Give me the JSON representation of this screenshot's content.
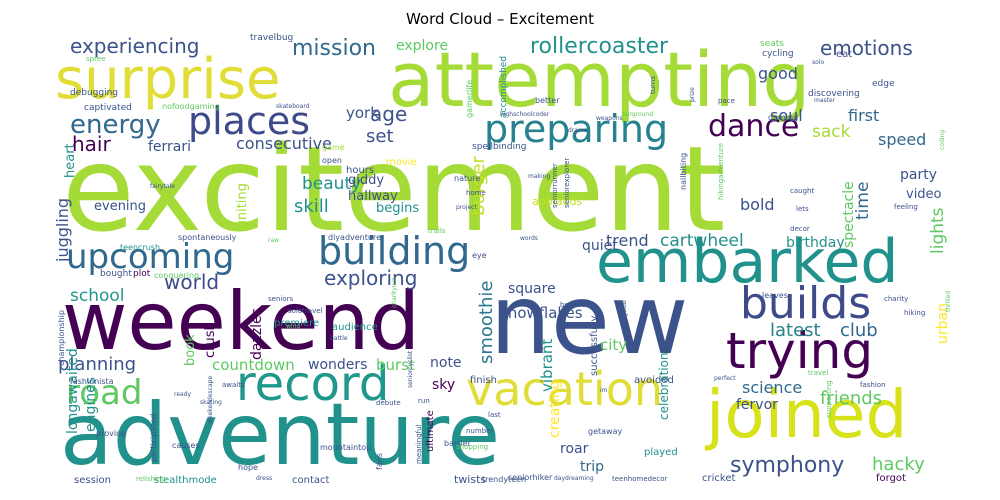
{
  "chart_data": {
    "type": "wordcloud",
    "title": "Word Cloud – Excitement",
    "palette": [
      "#440154",
      "#3b528b",
      "#21918c",
      "#5ec962",
      "#a5db36",
      "#fde725"
    ],
    "words": [
      {
        "text": "excitement",
        "weight": 100,
        "color": "#a5db36"
      },
      {
        "text": "new",
        "weight": 62,
        "color": "#3b528b"
      },
      {
        "text": "weekend",
        "weight": 58,
        "color": "#440154"
      },
      {
        "text": "attempting",
        "weight": 55,
        "color": "#a5db36"
      },
      {
        "text": "adventure",
        "weight": 55,
        "color": "#21918c"
      },
      {
        "text": "surprise",
        "weight": 42,
        "color": "#e1dd37"
      },
      {
        "text": "embarked",
        "weight": 40,
        "color": "#21918c"
      },
      {
        "text": "joined",
        "weight": 40,
        "color": "#d8e219"
      },
      {
        "text": "record",
        "weight": 33,
        "color": "#1f988b"
      },
      {
        "text": "trying",
        "weight": 33,
        "color": "#440154"
      },
      {
        "text": "vacation",
        "weight": 32,
        "color": "#e1dd37"
      },
      {
        "text": "builds",
        "weight": 28,
        "color": "#3e4a89"
      },
      {
        "text": "upcoming",
        "weight": 26,
        "color": "#31688e"
      },
      {
        "text": "building",
        "weight": 26,
        "color": "#31688e"
      },
      {
        "text": "places",
        "weight": 25,
        "color": "#3e4a89"
      },
      {
        "text": "preparing",
        "weight": 24,
        "color": "#26828e"
      },
      {
        "text": "road",
        "weight": 24,
        "color": "#5ec962"
      },
      {
        "text": "symphony",
        "weight": 16,
        "color": "#3b528b"
      },
      {
        "text": "dance",
        "weight": 17,
        "color": "#440154"
      },
      {
        "text": "energy",
        "weight": 16,
        "color": "#31688e"
      },
      {
        "text": "rollercoaster",
        "weight": 15,
        "color": "#21918c"
      },
      {
        "text": "experiencing",
        "weight": 13,
        "color": "#3b528b"
      },
      {
        "text": "mission",
        "weight": 14,
        "color": "#31688e"
      },
      {
        "text": "emotions",
        "weight": 13,
        "color": "#3b528b"
      },
      {
        "text": "exploring",
        "weight": 13,
        "color": "#3b528b"
      },
      {
        "text": "world",
        "weight": 13,
        "color": "#3e4a89"
      },
      {
        "text": "latest",
        "weight": 12,
        "color": "#26828e"
      },
      {
        "text": "club",
        "weight": 12,
        "color": "#31688e"
      },
      {
        "text": "hacky",
        "weight": 12,
        "color": "#5ec962"
      },
      {
        "text": "juggling",
        "weight": 12,
        "color": "#3b528b"
      },
      {
        "text": "planning",
        "weight": 12,
        "color": "#3b528b"
      },
      {
        "text": "smoothie",
        "weight": 12,
        "color": "#2a788e"
      },
      {
        "text": "age",
        "weight": 12,
        "color": "#3b528b"
      },
      {
        "text": "hair",
        "weight": 12,
        "color": "#440154"
      },
      {
        "text": "friends",
        "weight": 11,
        "color": "#5ec962"
      },
      {
        "text": "science",
        "weight": 11,
        "color": "#31688e"
      },
      {
        "text": "school",
        "weight": 11,
        "color": "#1f988b"
      },
      {
        "text": "time",
        "weight": 11,
        "color": "#31688e"
      },
      {
        "text": "burger",
        "weight": 11,
        "color": "#c2df23"
      },
      {
        "text": "trend",
        "weight": 10,
        "color": "#3b528b"
      },
      {
        "text": "cartwheel",
        "weight": 10,
        "color": "#21918c"
      },
      {
        "text": "set",
        "weight": 10,
        "color": "#3b528b"
      },
      {
        "text": "good",
        "weight": 10,
        "color": "#3b528b"
      },
      {
        "text": "beauty",
        "weight": 10,
        "color": "#21918c"
      },
      {
        "text": "skill",
        "weight": 10,
        "color": "#21918c"
      },
      {
        "text": "lights",
        "weight": 10,
        "color": "#5ec962"
      },
      {
        "text": "bold",
        "weight": 9,
        "color": "#3b528b"
      },
      {
        "text": "consecutive",
        "weight": 9,
        "color": "#3b528b"
      },
      {
        "text": "york",
        "weight": 9,
        "color": "#3b528b"
      },
      {
        "text": "soul",
        "weight": 9,
        "color": "#3b528b"
      },
      {
        "text": "sack",
        "weight": 9,
        "color": "#a5db36"
      },
      {
        "text": "first",
        "weight": 9,
        "color": "#31688e"
      },
      {
        "text": "speed",
        "weight": 9,
        "color": "#31688e"
      },
      {
        "text": "countdown",
        "weight": 8,
        "color": "#5ec962"
      },
      {
        "text": "wonders",
        "weight": 8,
        "color": "#3b528b"
      },
      {
        "text": "burst",
        "weight": 8,
        "color": "#5ec962"
      },
      {
        "text": "square",
        "weight": 8,
        "color": "#3b528b"
      },
      {
        "text": "snowflakes",
        "weight": 8,
        "color": "#3b528b"
      },
      {
        "text": "vibrant",
        "weight": 8,
        "color": "#21918c"
      },
      {
        "text": "city",
        "weight": 8,
        "color": "#5ec962"
      },
      {
        "text": "fervor",
        "weight": 8,
        "color": "#3b528b"
      },
      {
        "text": "explore",
        "weight": 7,
        "color": "#5ec962"
      },
      {
        "text": "dazzles",
        "weight": 7,
        "color": "#440154"
      },
      {
        "text": "crush",
        "weight": 7,
        "color": "#440154"
      },
      {
        "text": "book",
        "weight": 7,
        "color": "#5ec962"
      },
      {
        "text": "quiet",
        "weight": 7,
        "color": "#3b528b"
      },
      {
        "text": "birthday",
        "weight": 7,
        "color": "#21918c"
      },
      {
        "text": "party",
        "weight": 7,
        "color": "#3b528b"
      },
      {
        "text": "video",
        "weight": 7,
        "color": "#3b528b"
      },
      {
        "text": "spectacle",
        "weight": 7,
        "color": "#5ec962"
      },
      {
        "text": "evening",
        "weight": 7,
        "color": "#3b528b"
      },
      {
        "text": "giddy",
        "weight": 7,
        "color": "#3b528b"
      },
      {
        "text": "hallway",
        "weight": 7,
        "color": "#3b528b"
      },
      {
        "text": "begins",
        "weight": 7,
        "color": "#21918c"
      },
      {
        "text": "igniting",
        "weight": 7,
        "color": "#a5db36"
      },
      {
        "text": "ferrari",
        "weight": 7,
        "color": "#3b528b"
      },
      {
        "text": "heart",
        "weight": 7,
        "color": "#21918c"
      },
      {
        "text": "engines",
        "weight": 7,
        "color": "#21918c"
      },
      {
        "text": "longawaited",
        "weight": 7,
        "color": "#21918c"
      },
      {
        "text": "note",
        "weight": 7,
        "color": "#3b528b"
      },
      {
        "text": "sky",
        "weight": 7,
        "color": "#440154"
      },
      {
        "text": "roar",
        "weight": 7,
        "color": "#3b528b"
      },
      {
        "text": "trip",
        "weight": 7,
        "color": "#31688e"
      },
      {
        "text": "celebration",
        "weight": 6,
        "color": "#21918c"
      },
      {
        "text": "creating",
        "weight": 6,
        "color": "#fde725"
      },
      {
        "text": "urban",
        "weight": 6,
        "color": "#fde725"
      },
      {
        "text": "applauds",
        "weight": 5,
        "color": "#c2df23"
      },
      {
        "text": "successfully",
        "weight": 5,
        "color": "#3b528b"
      },
      {
        "text": "premiere",
        "weight": 5,
        "color": "#21918c"
      },
      {
        "text": "audience",
        "weight": 5,
        "color": "#21918c"
      },
      {
        "text": "avoided",
        "weight": 5,
        "color": "#3b528b"
      },
      {
        "text": "finish",
        "weight": 5,
        "color": "#3b528b"
      },
      {
        "text": "played",
        "weight": 5,
        "color": "#21918c"
      },
      {
        "text": "ultimate",
        "weight": 5,
        "color": "#440154"
      },
      {
        "text": "twists",
        "weight": 5,
        "color": "#3b528b"
      },
      {
        "text": "contact",
        "weight": 5,
        "color": "#3b528b"
      },
      {
        "text": "session",
        "weight": 5,
        "color": "#3b528b"
      },
      {
        "text": "stealthmode",
        "weight": 5,
        "color": "#21918c"
      },
      {
        "text": "cricket",
        "weight": 5,
        "color": "#3b528b"
      },
      {
        "text": "forgot",
        "weight": 5,
        "color": "#440154"
      },
      {
        "text": "hours",
        "weight": 5,
        "color": "#3b528b"
      },
      {
        "text": "movie",
        "weight": 5,
        "color": "#fde725"
      },
      {
        "text": "game",
        "weight": 4,
        "color": "#a5db36"
      },
      {
        "text": "open",
        "weight": 4,
        "color": "#3b528b"
      },
      {
        "text": "edge",
        "weight": 4,
        "color": "#3b528b"
      },
      {
        "text": "discovering",
        "weight": 4,
        "color": "#3b528b"
      },
      {
        "text": "gaming",
        "weight": 4,
        "color": "#3b528b"
      },
      {
        "text": "eat",
        "weight": 5,
        "color": "#3b528b"
      },
      {
        "text": "seats",
        "weight": 4,
        "color": "#5ec962"
      },
      {
        "text": "cycling",
        "weight": 4,
        "color": "#3b528b"
      },
      {
        "text": "travelbug",
        "weight": 4,
        "color": "#3b528b"
      },
      {
        "text": "accomplished",
        "weight": 4,
        "color": "#21918c"
      },
      {
        "text": "captivated",
        "weight": 4,
        "color": "#3b528b"
      },
      {
        "text": "debugging",
        "weight": 4,
        "color": "#3b528b"
      },
      {
        "text": "better",
        "weight": 4,
        "color": "#3b528b"
      },
      {
        "text": "spellbinding",
        "weight": 4,
        "color": "#3b528b"
      },
      {
        "text": "nofoodgaming",
        "weight": 4,
        "color": "#5ec962"
      },
      {
        "text": "gamerlife",
        "weight": 4,
        "color": "#5ec962"
      },
      {
        "text": "nature",
        "weight": 4,
        "color": "#3b528b"
      },
      {
        "text": "spontaneously",
        "weight": 4,
        "color": "#3b528b"
      },
      {
        "text": "teencrush",
        "weight": 4,
        "color": "#21918c"
      },
      {
        "text": "conquering",
        "weight": 4,
        "color": "#5ec962"
      },
      {
        "text": "plot",
        "weight": 4,
        "color": "#440154"
      },
      {
        "text": "bought",
        "weight": 4,
        "color": "#3b528b"
      },
      {
        "text": "championship",
        "weight": 4,
        "color": "#3b528b"
      },
      {
        "text": "fashionista",
        "weight": 4,
        "color": "#3b528b"
      },
      {
        "text": "proving",
        "weight": 4,
        "color": "#3b528b"
      },
      {
        "text": "participated",
        "weight": 4,
        "color": "#3b528b"
      },
      {
        "text": "causes",
        "weight": 4,
        "color": "#3b528b"
      },
      {
        "text": "hope",
        "weight": 4,
        "color": "#3b528b"
      },
      {
        "text": "mountaintop",
        "weight": 4,
        "color": "#3b528b"
      },
      {
        "text": "fans",
        "weight": 4,
        "color": "#3b528b"
      },
      {
        "text": "meaningful",
        "weight": 3,
        "color": "#3b528b"
      },
      {
        "text": "barrier",
        "weight": 4,
        "color": "#3b528b"
      },
      {
        "text": "trendyteen",
        "weight": 4,
        "color": "#3b528b"
      },
      {
        "text": "shopping",
        "weight": 4,
        "color": "#5ec962"
      },
      {
        "text": "getaway",
        "weight": 4,
        "color": "#3b528b"
      },
      {
        "text": "teenhomedecor",
        "weight": 4,
        "color": "#3b528b"
      },
      {
        "text": "seniorhiker",
        "weight": 4,
        "color": "#3b528b"
      },
      {
        "text": "number",
        "weight": 4,
        "color": "#3b528b"
      },
      {
        "text": "last",
        "weight": 3,
        "color": "#3b528b"
      },
      {
        "text": "run",
        "weight": 4,
        "color": "#3b528b"
      },
      {
        "text": "debute",
        "weight": 3,
        "color": "#3b528b"
      },
      {
        "text": "seniors",
        "weight": 3,
        "color": "#3b528b"
      },
      {
        "text": "solotravel",
        "weight": 3,
        "color": "#3b528b"
      },
      {
        "text": "diyadventure",
        "weight": 4,
        "color": "#3b528b"
      },
      {
        "text": "trails",
        "weight": 3,
        "color": "#5ec962"
      },
      {
        "text": "booked",
        "weight": 3,
        "color": "#3b528b"
      },
      {
        "text": "eye",
        "weight": 4,
        "color": "#3b528b"
      },
      {
        "text": "seniorrunner",
        "weight": 4,
        "color": "#3b528b"
      },
      {
        "text": "seniorexplorer",
        "weight": 4,
        "color": "#3b528b"
      },
      {
        "text": "nailbiting",
        "weight": 4,
        "color": "#3b528b"
      },
      {
        "text": "hikingadventure",
        "weight": 4,
        "color": "#5ec962"
      },
      {
        "text": "caught",
        "weight": 3,
        "color": "#3b528b"
      },
      {
        "text": "lets",
        "weight": 3,
        "color": "#3b528b"
      },
      {
        "text": "feeling",
        "weight": 3,
        "color": "#3b528b"
      },
      {
        "text": "charity",
        "weight": 3,
        "color": "#3b528b"
      },
      {
        "text": "hiking",
        "weight": 3,
        "color": "#3b528b"
      },
      {
        "text": "leaves",
        "weight": 4,
        "color": "#3b528b"
      },
      {
        "text": "fashion",
        "weight": 3,
        "color": "#3b528b"
      },
      {
        "text": "travel",
        "weight": 3,
        "color": "#5ec962"
      },
      {
        "text": "supporting",
        "weight": 3,
        "color": "#5ec962"
      },
      {
        "text": "perfect",
        "weight": 3,
        "color": "#3b528b"
      },
      {
        "text": "awaits",
        "weight": 3,
        "color": "#3b528b"
      },
      {
        "text": "skating",
        "weight": 3,
        "color": "#3b528b"
      },
      {
        "text": "ready",
        "weight": 3,
        "color": "#3b528b"
      },
      {
        "text": "relishing",
        "weight": 3,
        "color": "#5ec962"
      },
      {
        "text": "weekendescape",
        "weight": 3,
        "color": "#3b528b"
      },
      {
        "text": "wind",
        "weight": 3,
        "color": "#5ec962"
      },
      {
        "text": "battle",
        "weight": 3,
        "color": "#3b528b"
      },
      {
        "text": "charityrun",
        "weight": 3,
        "color": "#5ec962"
      },
      {
        "text": "seniorcyclist",
        "weight": 3,
        "color": "#3b528b"
      },
      {
        "text": "cyclingclub",
        "weight": 3,
        "color": "#3b528b"
      },
      {
        "text": "dress",
        "weight": 3,
        "color": "#3b528b"
      },
      {
        "text": "daydreaming",
        "weight": 3,
        "color": "#3b528b"
      },
      {
        "text": "decor",
        "weight": 3,
        "color": "#3b528b"
      },
      {
        "text": "fairytale",
        "weight": 3,
        "color": "#3b528b"
      },
      {
        "text": "home",
        "weight": 3,
        "color": "#3b528b"
      },
      {
        "text": "project",
        "weight": 3,
        "color": "#3b528b"
      },
      {
        "text": "making",
        "weight": 3,
        "color": "#3b528b"
      },
      {
        "text": "words",
        "weight": 3,
        "color": "#3b528b"
      },
      {
        "text": "raw",
        "weight": 3,
        "color": "#5ec962"
      },
      {
        "text": "im",
        "weight": 3,
        "color": "#3b528b"
      },
      {
        "text": "pace",
        "weight": 3,
        "color": "#3b528b"
      },
      {
        "text": "turns",
        "weight": 3,
        "color": "#3b528b"
      },
      {
        "text": "weapons",
        "weight": 3,
        "color": "#3b528b"
      },
      {
        "text": "drama",
        "weight": 3,
        "color": "#3b528b"
      },
      {
        "text": "highschoolcoder",
        "weight": 3,
        "color": "#3b528b"
      },
      {
        "text": "skateboard",
        "weight": 3,
        "color": "#3b528b"
      },
      {
        "text": "spree",
        "weight": 3,
        "color": "#5ec962"
      },
      {
        "text": "solo",
        "weight": 3,
        "color": "#3b528b"
      },
      {
        "text": "master",
        "weight": 3,
        "color": "#3b528b"
      },
      {
        "text": "coding",
        "weight": 3,
        "color": "#5ec962"
      },
      {
        "text": "prize",
        "weight": 3,
        "color": "#3b528b"
      },
      {
        "text": "fairground",
        "weight": 3,
        "color": "#5ec962"
      },
      {
        "text": "thrilled",
        "weight": 3,
        "color": "#5ec962"
      }
    ]
  }
}
